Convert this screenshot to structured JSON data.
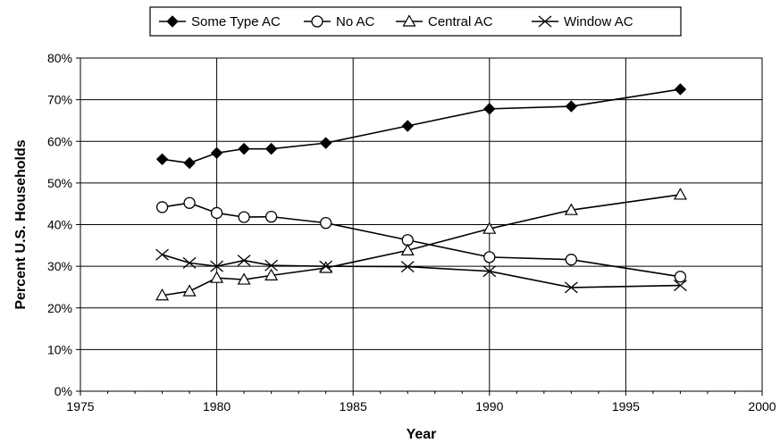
{
  "chart_data": {
    "type": "line",
    "xlabel": "Year",
    "ylabel": "Percent U.S. Households",
    "xlim": [
      1975,
      2000
    ],
    "ylim": [
      0,
      80
    ],
    "x_ticks": [
      "1975",
      "1980",
      "1985",
      "1990",
      "1995",
      "2000"
    ],
    "y_ticks": [
      "0%",
      "10%",
      "20%",
      "30%",
      "40%",
      "50%",
      "60%",
      "70%",
      "80%"
    ],
    "grid": "vertical and horizontal",
    "legend_position": "top",
    "series": [
      {
        "name": "Some Type AC",
        "marker": "filled-diamond",
        "color": "#000000",
        "x": [
          1978,
          1979,
          1980,
          1981,
          1982,
          1984,
          1987,
          1990,
          1993,
          1997
        ],
        "values": [
          55.7,
          54.8,
          57.2,
          58.2,
          58.2,
          59.6,
          63.7,
          67.8,
          68.4,
          72.5
        ]
      },
      {
        "name": "No AC",
        "marker": "open-circle",
        "color": "#000000",
        "x": [
          1978,
          1979,
          1980,
          1981,
          1982,
          1984,
          1987,
          1990,
          1993,
          1997
        ],
        "values": [
          44.2,
          45.2,
          42.8,
          41.8,
          41.9,
          40.4,
          36.3,
          32.2,
          31.6,
          27.5
        ]
      },
      {
        "name": "Central AC",
        "marker": "open-triangle",
        "color": "#000000",
        "x": [
          1978,
          1979,
          1980,
          1981,
          1982,
          1984,
          1987,
          1990,
          1993,
          1997
        ],
        "values": [
          23.0,
          24.0,
          27.2,
          26.8,
          27.8,
          29.6,
          33.8,
          39.0,
          43.5,
          47.2
        ]
      },
      {
        "name": "Window AC",
        "marker": "x-cross",
        "color": "#000000",
        "x": [
          1978,
          1979,
          1980,
          1981,
          1982,
          1984,
          1987,
          1990,
          1993,
          1997
        ],
        "values": [
          32.8,
          30.8,
          30.0,
          31.4,
          30.2,
          30.0,
          29.9,
          28.8,
          24.9,
          25.4
        ]
      }
    ]
  }
}
